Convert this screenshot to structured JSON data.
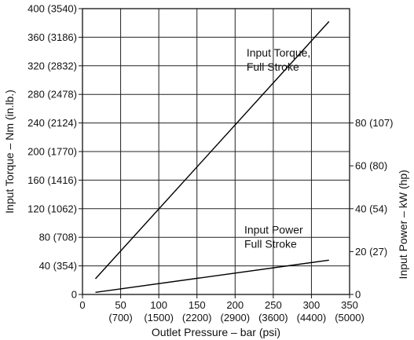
{
  "chart_data": {
    "type": "line",
    "title": "",
    "xlabel": "Outlet Pressure – bar (psi)",
    "ylabel": "Input Torque – Nm (in.lb.)",
    "ylabel_right": "Input Power –  kW (hp)",
    "xlim": [
      0,
      350
    ],
    "ylim": [
      0,
      400
    ],
    "ylim_right": [
      0,
      80
    ],
    "grid": true,
    "x_ticks": [
      {
        "value": 0,
        "label": "0",
        "sublabel": ""
      },
      {
        "value": 50,
        "label": "50",
        "sublabel": "(700)"
      },
      {
        "value": 100,
        "label": "100",
        "sublabel": "(1500)"
      },
      {
        "value": 150,
        "label": "150",
        "sublabel": "(2200)"
      },
      {
        "value": 200,
        "label": "200",
        "sublabel": "(2900)"
      },
      {
        "value": 250,
        "label": "250",
        "sublabel": "(3600)"
      },
      {
        "value": 300,
        "label": "300",
        "sublabel": "(4400)"
      },
      {
        "value": 350,
        "label": "350",
        "sublabel": "(5000)"
      }
    ],
    "y_ticks_left": [
      {
        "value": 0,
        "label": "0"
      },
      {
        "value": 40,
        "label": "40  (354)"
      },
      {
        "value": 80,
        "label": "80 (708)"
      },
      {
        "value": 120,
        "label": "120 (1062)"
      },
      {
        "value": 160,
        "label": "160 (1416)"
      },
      {
        "value": 200,
        "label": "200 (1770)"
      },
      {
        "value": 240,
        "label": "240 (2124)"
      },
      {
        "value": 280,
        "label": "280 (2478)"
      },
      {
        "value": 320,
        "label": "320 (2832)"
      },
      {
        "value": 360,
        "label": "360 (3186)"
      },
      {
        "value": 400,
        "label": "400 (3540)"
      }
    ],
    "y_ticks_right": [
      {
        "value": 0,
        "label": "0"
      },
      {
        "value": 20,
        "label": "20 (27)"
      },
      {
        "value": 40,
        "label": "40 (54)"
      },
      {
        "value": 60,
        "label": "60 (80)"
      },
      {
        "value": 80,
        "label": "80 (107)"
      }
    ],
    "series": [
      {
        "name": "",
        "axis": "left",
        "x": [
          17,
          323
        ],
        "y": [
          22,
          382
        ],
        "color": "#000000"
      },
      {
        "name": "",
        "axis": "right",
        "x": [
          17,
          323
        ],
        "y": [
          1,
          16
        ],
        "color": "#000000"
      }
    ],
    "annotations": [
      {
        "lines": [
          "Input Torque,",
          "Full Stroke"
        ],
        "x": 215,
        "y": 333
      },
      {
        "lines": [
          "Input Power",
          "Full Stroke"
        ],
        "x": 212,
        "y": 85
      }
    ]
  }
}
